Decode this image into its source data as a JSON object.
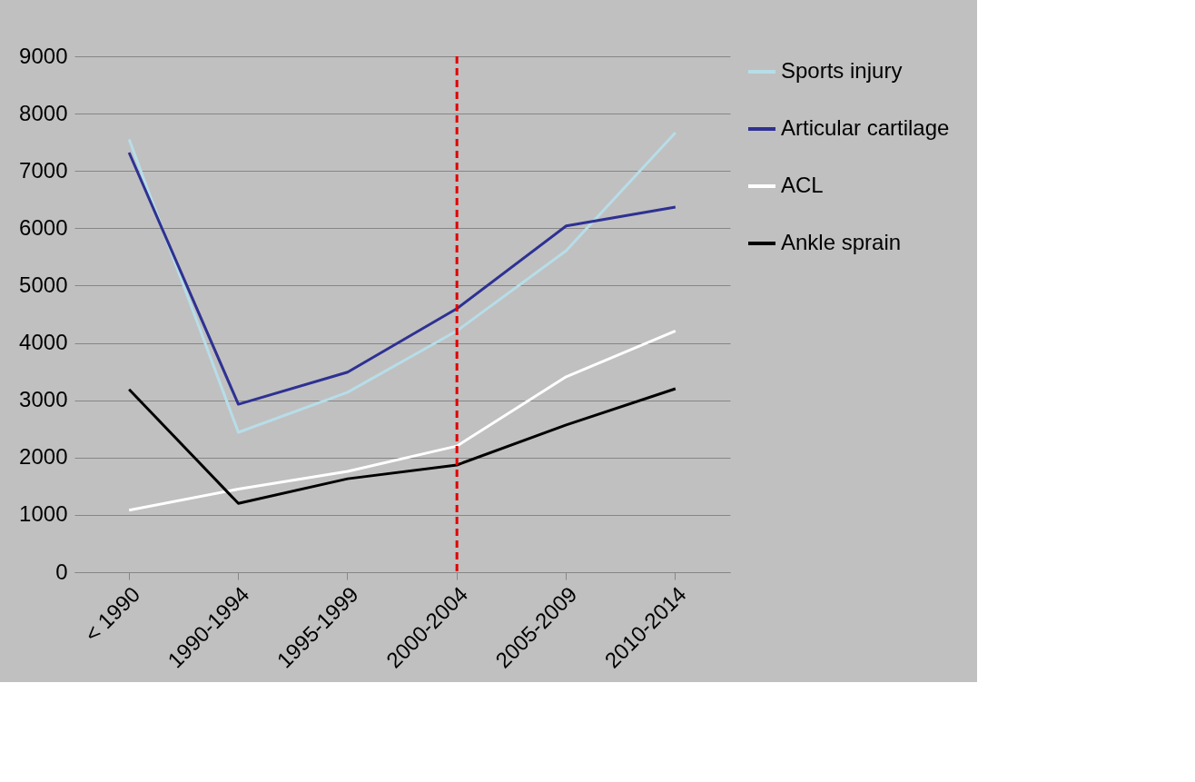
{
  "chart_data": {
    "type": "line",
    "categories": [
      "< 1990",
      "1990-1994",
      "1995-1999",
      "2000-2004",
      "2005-2009",
      "2010-2014"
    ],
    "series": [
      {
        "name": "Sports injury",
        "color": "#b7dde8",
        "values": [
          7550,
          2440,
          3140,
          4210,
          5610,
          7670
        ]
      },
      {
        "name": "Articular cartilage",
        "color": "#2e3192",
        "values": [
          7320,
          2930,
          3490,
          4600,
          6040,
          6370
        ]
      },
      {
        "name": "ACL",
        "color": "#ffffff",
        "values": [
          1080,
          1450,
          1760,
          2200,
          3410,
          4210
        ]
      },
      {
        "name": "Ankle sprain",
        "color": "#000000",
        "values": [
          3190,
          1200,
          1630,
          1870,
          2570,
          3200
        ]
      }
    ],
    "ylim": [
      0,
      9000
    ],
    "yticks": [
      0,
      1000,
      2000,
      3000,
      4000,
      5000,
      6000,
      7000,
      8000,
      9000
    ],
    "grid": "y",
    "legend": "right",
    "marker": "none",
    "line_style": "solid",
    "ref_lines": [
      {
        "axis": "x",
        "value": "2000-2004",
        "color": "#e00000",
        "line_style": "dashed"
      }
    ]
  }
}
